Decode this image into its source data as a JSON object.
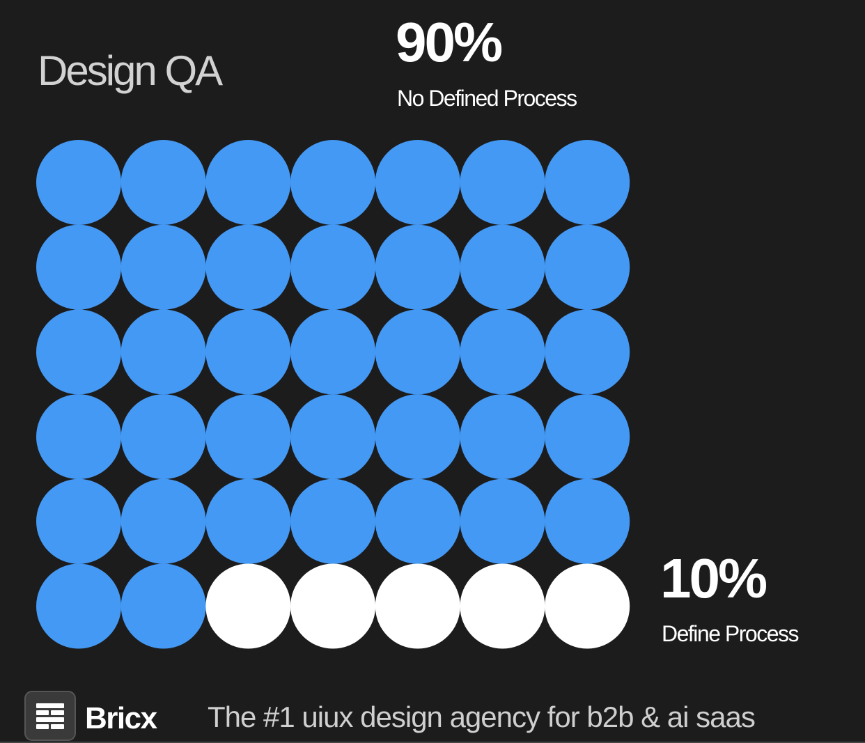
{
  "chart_data": {
    "type": "waffle",
    "title": "Design QA",
    "series": [
      {
        "name": "No Defined Process",
        "color": "#4499f5",
        "values": [
          90
        ],
        "value_labels": [
          "90%"
        ]
      },
      {
        "name": "Define Process",
        "color": "#ffffff",
        "values": [
          10
        ],
        "value_labels": [
          "10%"
        ]
      }
    ]
  },
  "footer": {
    "brand": "Bricx",
    "tagline": "The #1 uiux design agency for b2b & ai saas"
  }
}
